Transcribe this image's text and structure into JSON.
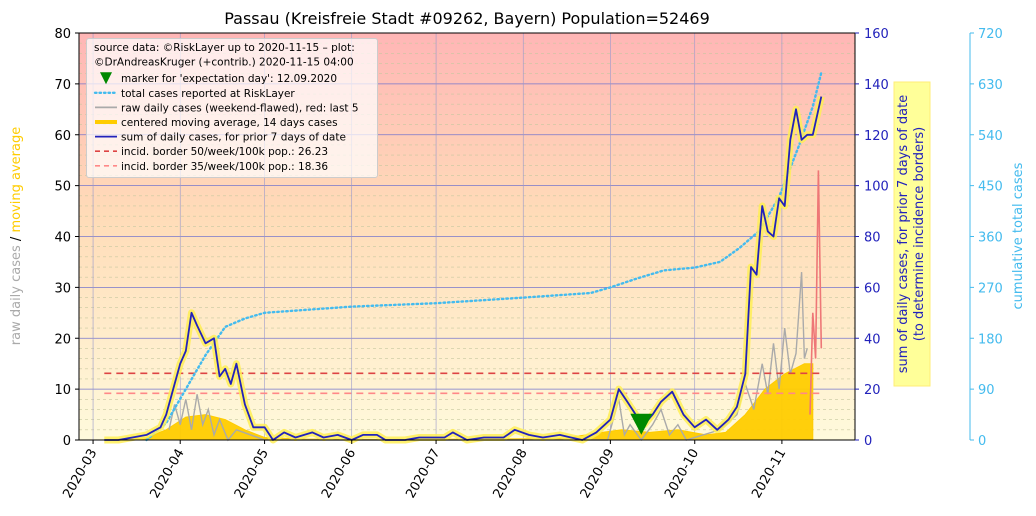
{
  "chart_data": {
    "type": "line",
    "title": "Passau (Kreisfreie Stadt #09262, Bayern) Population=52469",
    "xlabel": "",
    "x_ticks": [
      "2020-03",
      "2020-04",
      "2020-05",
      "2020-06",
      "2020-07",
      "2020-08",
      "2020-09",
      "2020-10",
      "2020-11"
    ],
    "xlim": [
      "2020-02-25",
      "2020-11-27"
    ],
    "y_left": {
      "label_parts": [
        "raw daily cases",
        "/",
        "moving average"
      ],
      "label_colors": [
        "#aaaaaa",
        "#000000",
        "#ffcc00"
      ],
      "ylim": [
        0,
        80
      ],
      "ticks": [
        "0",
        "10",
        "20",
        "30",
        "40",
        "50",
        "60",
        "70",
        "80"
      ]
    },
    "y_right": {
      "label": "sum of daily cases, for prior 7 days of date\n(to determine incidence borders)",
      "label_lines": [
        "sum of daily cases, for prior 7 days of date",
        "(to determine incidence borders)"
      ],
      "ylim": [
        0,
        160
      ],
      "ticks": [
        "0",
        "20",
        "40",
        "60",
        "80",
        "100",
        "120",
        "140",
        "160"
      ],
      "color": "#2222bb"
    },
    "y_right2": {
      "label": "cumulative total cases",
      "ylim": [
        0,
        720
      ],
      "ticks": [
        "0",
        "90",
        "180",
        "270",
        "360",
        "450",
        "540",
        "630",
        "720"
      ],
      "color": "#44bbee"
    },
    "grid": true,
    "legend_placement": "top-left",
    "legend": [
      {
        "text": "source data: ©RiskLayer up to 2020-11-15 – plot:",
        "kind": "text"
      },
      {
        "text": "©DrAndreasKruger (+contrib.) 2020-11-15 04:00",
        "kind": "text"
      },
      {
        "text": "marker for 'expectation day': 12.09.2020",
        "kind": "marker",
        "color": "#008800"
      },
      {
        "text": "total cases reported at RiskLayer",
        "kind": "dotted",
        "color": "#44bbee"
      },
      {
        "text": "raw daily cases (weekend-flawed), red: last 5",
        "kind": "line",
        "color": "#aaaaaa"
      },
      {
        "text": "centered moving average, 14 days cases",
        "kind": "thick",
        "color": "#ffcc00"
      },
      {
        "text": "sum of daily cases, for prior 7 days of date",
        "kind": "line",
        "color": "#2222bb"
      },
      {
        "text": "incid. border 50/week/100k pop.: 26.23",
        "kind": "dashed",
        "color": "#dd4444"
      },
      {
        "text": "incid. border 35/week/100k pop.: 18.36",
        "kind": "dashed",
        "color": "#ff8888"
      }
    ],
    "expectation_marker": {
      "date": "2020-09-12",
      "y_left": 3
    },
    "incidence_50": {
      "value": 26.23,
      "axis": "sum7",
      "from": "2020-03-05",
      "to": "2020-11-15"
    },
    "incidence_35": {
      "value": 18.36,
      "axis": "sum7",
      "from": "2020-03-05",
      "to": "2020-11-15"
    },
    "series": [
      {
        "name": "sum of daily cases, for prior 7 days of date",
        "axis": "right",
        "color": "#2222bb",
        "points": [
          [
            "2020-03-05",
            0
          ],
          [
            "2020-03-10",
            0
          ],
          [
            "2020-03-15",
            1
          ],
          [
            "2020-03-20",
            2
          ],
          [
            "2020-03-25",
            5
          ],
          [
            "2020-03-27",
            10
          ],
          [
            "2020-03-30",
            22
          ],
          [
            "2020-04-01",
            30
          ],
          [
            "2020-04-03",
            35
          ],
          [
            "2020-04-05",
            50
          ],
          [
            "2020-04-07",
            45
          ],
          [
            "2020-04-10",
            38
          ],
          [
            "2020-04-13",
            40
          ],
          [
            "2020-04-15",
            25
          ],
          [
            "2020-04-17",
            28
          ],
          [
            "2020-04-19",
            22
          ],
          [
            "2020-04-21",
            30
          ],
          [
            "2020-04-24",
            14
          ],
          [
            "2020-04-27",
            5
          ],
          [
            "2020-05-01",
            5
          ],
          [
            "2020-05-04",
            0
          ],
          [
            "2020-05-08",
            3
          ],
          [
            "2020-05-12",
            1
          ],
          [
            "2020-05-18",
            3
          ],
          [
            "2020-05-22",
            1
          ],
          [
            "2020-05-27",
            2
          ],
          [
            "2020-06-01",
            0
          ],
          [
            "2020-06-05",
            2
          ],
          [
            "2020-06-10",
            2
          ],
          [
            "2020-06-13",
            0
          ],
          [
            "2020-06-20",
            0
          ],
          [
            "2020-06-25",
            1
          ],
          [
            "2020-06-30",
            1
          ],
          [
            "2020-07-04",
            1
          ],
          [
            "2020-07-07",
            3
          ],
          [
            "2020-07-12",
            0
          ],
          [
            "2020-07-18",
            1
          ],
          [
            "2020-07-25",
            1
          ],
          [
            "2020-07-29",
            4
          ],
          [
            "2020-08-03",
            2
          ],
          [
            "2020-08-08",
            1
          ],
          [
            "2020-08-14",
            2
          ],
          [
            "2020-08-18",
            1
          ],
          [
            "2020-08-22",
            0
          ],
          [
            "2020-08-27",
            3
          ],
          [
            "2020-09-01",
            8
          ],
          [
            "2020-09-04",
            20
          ],
          [
            "2020-09-07",
            15
          ],
          [
            "2020-09-10",
            10
          ],
          [
            "2020-09-13",
            6
          ],
          [
            "2020-09-16",
            10
          ],
          [
            "2020-09-19",
            15
          ],
          [
            "2020-09-23",
            19
          ],
          [
            "2020-09-27",
            10
          ],
          [
            "2020-10-01",
            5
          ],
          [
            "2020-10-05",
            8
          ],
          [
            "2020-10-09",
            4
          ],
          [
            "2020-10-13",
            8
          ],
          [
            "2020-10-16",
            13
          ],
          [
            "2020-10-19",
            26
          ],
          [
            "2020-10-21",
            68
          ],
          [
            "2020-10-23",
            65
          ],
          [
            "2020-10-25",
            92
          ],
          [
            "2020-10-27",
            82
          ],
          [
            "2020-10-29",
            80
          ],
          [
            "2020-10-31",
            95
          ],
          [
            "2020-11-02",
            92
          ],
          [
            "2020-11-04",
            118
          ],
          [
            "2020-11-06",
            130
          ],
          [
            "2020-11-08",
            118
          ],
          [
            "2020-11-10",
            120
          ],
          [
            "2020-11-12",
            120
          ],
          [
            "2020-11-15",
            135
          ]
        ]
      },
      {
        "name": "centered moving average, 14 days cases",
        "axis": "left",
        "color": "#ffcc00",
        "points": [
          [
            "2020-03-05",
            0
          ],
          [
            "2020-03-20",
            0.5
          ],
          [
            "2020-03-27",
            2
          ],
          [
            "2020-04-03",
            4.5
          ],
          [
            "2020-04-10",
            5
          ],
          [
            "2020-04-17",
            4
          ],
          [
            "2020-04-24",
            2
          ],
          [
            "2020-05-01",
            0.5
          ],
          [
            "2020-05-15",
            0.2
          ],
          [
            "2020-06-15",
            0.1
          ],
          [
            "2020-07-15",
            0.2
          ],
          [
            "2020-08-15",
            0.3
          ],
          [
            "2020-08-29",
            1.5
          ],
          [
            "2020-09-05",
            2
          ],
          [
            "2020-09-15",
            1.5
          ],
          [
            "2020-09-25",
            2
          ],
          [
            "2020-10-05",
            1
          ],
          [
            "2020-10-12",
            1.5
          ],
          [
            "2020-10-19",
            5
          ],
          [
            "2020-10-26",
            10
          ],
          [
            "2020-11-02",
            13
          ],
          [
            "2020-11-09",
            15
          ],
          [
            "2020-11-12",
            15
          ]
        ]
      },
      {
        "name": "raw daily cases (weekend-flawed), red: last 5",
        "axis": "left",
        "color": "#aaaaaa",
        "points": [
          [
            "2020-03-28",
            2
          ],
          [
            "2020-03-30",
            7
          ],
          [
            "2020-04-01",
            3
          ],
          [
            "2020-04-03",
            8
          ],
          [
            "2020-04-05",
            2
          ],
          [
            "2020-04-07",
            9
          ],
          [
            "2020-04-09",
            3
          ],
          [
            "2020-04-11",
            6
          ],
          [
            "2020-04-13",
            1
          ],
          [
            "2020-04-15",
            4
          ],
          [
            "2020-04-18",
            0
          ],
          [
            "2020-04-21",
            2
          ],
          [
            "2020-05-01",
            0
          ],
          [
            "2020-08-31",
            0
          ],
          [
            "2020-09-02",
            4
          ],
          [
            "2020-09-04",
            8
          ],
          [
            "2020-09-06",
            1
          ],
          [
            "2020-09-08",
            3
          ],
          [
            "2020-09-12",
            0
          ],
          [
            "2020-09-16",
            3
          ],
          [
            "2020-09-19",
            6
          ],
          [
            "2020-09-22",
            1
          ],
          [
            "2020-09-25",
            3
          ],
          [
            "2020-09-28",
            0
          ],
          [
            "2020-10-10",
            2
          ],
          [
            "2020-10-16",
            5
          ],
          [
            "2020-10-19",
            11
          ],
          [
            "2020-10-22",
            6
          ],
          [
            "2020-10-25",
            15
          ],
          [
            "2020-10-27",
            9
          ],
          [
            "2020-10-29",
            19
          ],
          [
            "2020-10-31",
            10
          ],
          [
            "2020-11-02",
            22
          ],
          [
            "2020-11-04",
            13
          ],
          [
            "2020-11-06",
            17
          ],
          [
            "2020-11-08",
            33
          ],
          [
            "2020-11-09",
            16
          ],
          [
            "2020-11-10",
            18
          ]
        ]
      },
      {
        "name": "raw daily cases, last 5 (red)",
        "axis": "left",
        "color": "#ee7777",
        "points": [
          [
            "2020-11-11",
            5
          ],
          [
            "2020-11-12",
            25
          ],
          [
            "2020-11-13",
            16
          ],
          [
            "2020-11-14",
            53
          ],
          [
            "2020-11-15",
            18
          ]
        ]
      },
      {
        "name": "total cases reported at RiskLayer",
        "axis": "right2",
        "color": "#44bbee",
        "points": [
          [
            "2020-03-20",
            0
          ],
          [
            "2020-03-27",
            30
          ],
          [
            "2020-04-03",
            90
          ],
          [
            "2020-04-10",
            150
          ],
          [
            "2020-04-17",
            200
          ],
          [
            "2020-04-24",
            215
          ],
          [
            "2020-05-01",
            225
          ],
          [
            "2020-05-15",
            230
          ],
          [
            "2020-06-01",
            236
          ],
          [
            "2020-07-01",
            242
          ],
          [
            "2020-08-01",
            252
          ],
          [
            "2020-08-25",
            260
          ],
          [
            "2020-09-01",
            270
          ],
          [
            "2020-09-10",
            285
          ],
          [
            "2020-09-20",
            300
          ],
          [
            "2020-10-01",
            305
          ],
          [
            "2020-10-10",
            315
          ],
          [
            "2020-10-17",
            340
          ],
          [
            "2020-10-24",
            370
          ],
          [
            "2020-10-31",
            430
          ],
          [
            "2020-11-07",
            520
          ],
          [
            "2020-11-12",
            590
          ],
          [
            "2020-11-15",
            650
          ]
        ]
      }
    ]
  }
}
